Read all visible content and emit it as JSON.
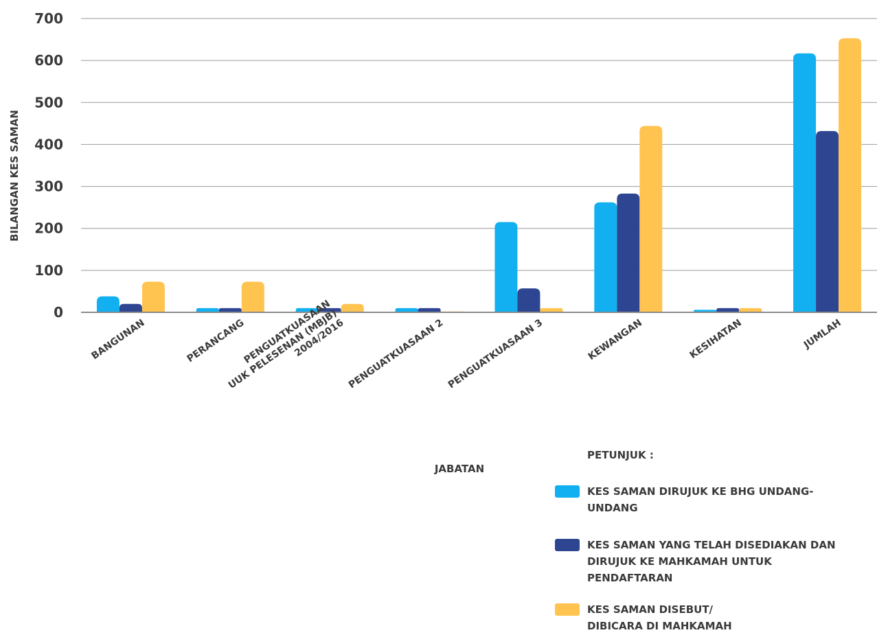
{
  "chart_data": {
    "type": "bar",
    "categories": [
      [
        "BANGUNAN"
      ],
      [
        "PERANCANG"
      ],
      [
        "PENGUATKUASAAN",
        "UUK PELESENAN (MBJB)",
        "2004/2016"
      ],
      [
        "PENGUATKUASAAN 2"
      ],
      [
        "PENGUATKUASAAN 3"
      ],
      [
        "KEWANGAN"
      ],
      [
        "KESIHATAN"
      ],
      [
        "JUMLAH"
      ]
    ],
    "series": [
      {
        "name": [
          "KES SAMAN DIRUJUK KE BHG UNDANG-",
          "UNDANG"
        ],
        "color": "#12B0F0",
        "values": [
          38,
          10,
          10,
          10,
          215,
          262,
          6,
          617
        ]
      },
      {
        "name": [
          "KES SAMAN YANG TELAH DISEDIAKAN DAN",
          "DIRUJUK KE MAHKAMAH UNTUK",
          "PENDAFTARAN"
        ],
        "color": "#2E4592",
        "values": [
          20,
          10,
          10,
          10,
          57,
          283,
          10,
          432
        ]
      },
      {
        "name": [
          "KES SAMAN DISEBUT/",
          "DIBICARA DI MAHKAMAH"
        ],
        "color": "#FFC350",
        "values": [
          73,
          73,
          20,
          2,
          10,
          444,
          10,
          653
        ]
      }
    ],
    "xlabel": "JABATAN",
    "ylabel": "BILANGAN KES SAMAN",
    "ylim": [
      0,
      700
    ],
    "yticks": [
      0,
      100,
      200,
      300,
      400,
      500,
      600,
      700
    ],
    "grid": true,
    "legend_title": "PETUNJUK :",
    "legend_position": "bottom-right"
  }
}
